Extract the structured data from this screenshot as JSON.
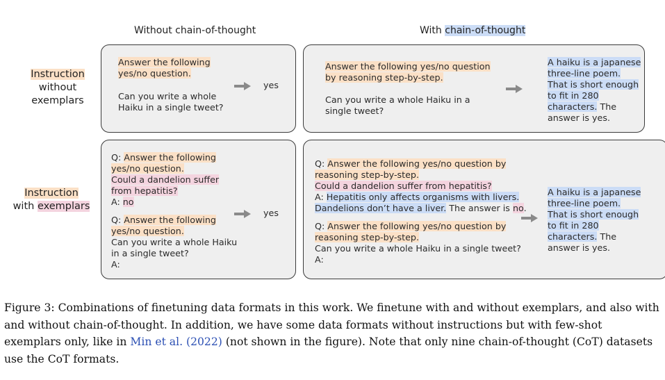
{
  "columns": {
    "without_cot": "Without chain-of-thought",
    "with_cot_prefix": "With ",
    "with_cot_highlight": "chain-of-thought"
  },
  "rows": {
    "r1": {
      "line1": "Instruction",
      "line2": "without",
      "line3": "exemplars"
    },
    "r2": {
      "line1": "Instruction",
      "line2_prefix": "with ",
      "line2_highlight": "exemplars"
    }
  },
  "box1": {
    "l1": "Answer the following",
    "l2": "yes/no question.",
    "l3": "Can you write a whole",
    "l4": "Haiku in a single tweet?",
    "answer": "yes"
  },
  "box2": {
    "l1": "Answer the following yes/no question",
    "l2": "by reasoning step-by-step.",
    "l3": "Can you write a whole Haiku in a",
    "l4": "single tweet?",
    "a1": "A haiku is a japanese",
    "a2": "three-line poem.",
    "a3": "That is short enough",
    "a4": "to fit in 280",
    "a5": "characters.",
    "a5_tail": " The",
    "a6": "answer is yes."
  },
  "box3": {
    "q_prefix": "Q: ",
    "q1": "Answer the following",
    "q2": "yes/no question.",
    "q3": "Could a dandelion suffer",
    "q4": "from hepatitis?",
    "a_prefix": "A: ",
    "a_val": "no",
    "q5": "Answer the following",
    "q6": "yes/no question.",
    "q7": "Can you write a whole Haiku",
    "q8": "in a single tweet?",
    "q9": "A:",
    "answer": "yes"
  },
  "box4": {
    "q_prefix": "Q: ",
    "l1": "Answer the following yes/no question by",
    "l2": "reasoning step-by-step.",
    "l3": "Could a dandelion suffer from hepatitis?",
    "a_prefix": "A: ",
    "l4": "Hepatitis only affects organisms with livers.",
    "l5": "Dandelions don’t have a liver.",
    "l5_tail": " The answer is ",
    "l5_no": "no",
    "l5_end": ".",
    "l6": "Answer the following yes/no question by",
    "l7": "reasoning step-by-step.",
    "l8": "Can you write a whole Haiku in a single tweet?",
    "l9": "A:",
    "a1": "A haiku is a japanese",
    "a2": "three-line poem.",
    "a3": "That is short enough",
    "a4": "to fit in 280",
    "a5": "characters.",
    "a5_tail": " The",
    "a6": "answer is yes."
  },
  "caption": {
    "p1": "Figure 3: Combinations of finetuning data formats in this work. We finetune with and without exemplars, and also with and without chain-of-thought. In addition, we have some data formats without instructions but with few-shot exemplars only, like in ",
    "cite": "Min et al. (2022)",
    "p2": " (not shown in the figure). Note that only nine chain-of-thought (CoT) datasets use the CoT formats."
  },
  "colors": {
    "orange_highlight": "#fbe0c6",
    "pink_highlight": "#f4d4df",
    "blue_highlight": "#cbdcf6",
    "citation": "#2b4fb3"
  }
}
